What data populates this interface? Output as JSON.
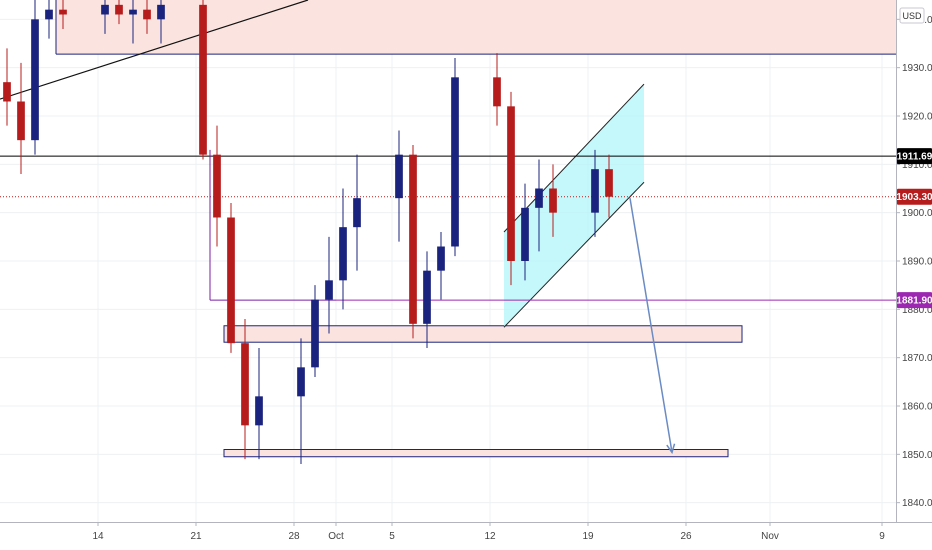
{
  "chart_data": {
    "type": "candlestick",
    "currency_label": "USD",
    "y_axis": {
      "min": 1836,
      "max": 1944,
      "ticks": [
        1840,
        1850,
        1860,
        1870,
        1880,
        1890,
        1900,
        1910,
        1920,
        1930,
        1940
      ]
    },
    "x_axis": {
      "start": "2020-09-07",
      "end": "2020-11-10",
      "ticks": [
        {
          "label": "14",
          "date": "2020-09-14"
        },
        {
          "label": "21",
          "date": "2020-09-21"
        },
        {
          "label": "28",
          "date": "2020-09-28"
        },
        {
          "label": "Oct",
          "date": "2020-10-01"
        },
        {
          "label": "5",
          "date": "2020-10-05"
        },
        {
          "label": "12",
          "date": "2020-10-12"
        },
        {
          "label": "19",
          "date": "2020-10-19"
        },
        {
          "label": "26",
          "date": "2020-10-26"
        },
        {
          "label": "Nov",
          "date": "2020-11-01"
        },
        {
          "label": "9",
          "date": "2020-11-09"
        }
      ]
    },
    "price_badges": [
      {
        "label": "1911.69",
        "value": 1911.69,
        "color": "#000000"
      },
      {
        "label": "1903.30",
        "value": 1903.3,
        "color": "#b71c1c"
      },
      {
        "label": "1881.90",
        "value": 1881.9,
        "color": "#9c27b0"
      }
    ],
    "horizontal_lines": [
      {
        "value": 1911.69,
        "color": "#000000",
        "style": "solid"
      },
      {
        "value": 1903.3,
        "color": "#b71c1c",
        "style": "dotted"
      },
      {
        "value": 1932.8,
        "color": "#1a237e",
        "style": "solid",
        "from": "2020-09-11",
        "to": "2020-11-10"
      },
      {
        "value": 1881.9,
        "color": "#9c27b0",
        "style": "solid",
        "from": "2020-10-01",
        "to": "2020-11-10"
      },
      {
        "value": 1881.9,
        "color": "#7b1fa2",
        "style": "solid",
        "from": "2020-09-22",
        "to": "2020-10-01"
      }
    ],
    "zones": [
      {
        "from": "2020-09-11",
        "to": "2020-11-10",
        "low": 1932.8,
        "high": 1944,
        "fill": "#fbe4df"
      },
      {
        "from": "2020-09-23",
        "to": "2020-10-30",
        "low": 1873.2,
        "high": 1876.6,
        "fill": "#fbe4df",
        "border": "#1a237e"
      },
      {
        "from": "2020-09-23",
        "to": "2020-10-29",
        "low": 1849.5,
        "high": 1851.0,
        "fill": "#fbe4df",
        "border": "#1a237e"
      }
    ],
    "channel": {
      "lower": [
        {
          "date": "2020-10-13",
          "value": 1876.3
        },
        {
          "date": "2020-10-23",
          "value": 1906.3
        }
      ],
      "upper": [
        {
          "date": "2020-10-13",
          "value": 1896.0
        },
        {
          "date": "2020-10-23",
          "value": 1926.6
        }
      ],
      "fill": "#b2f5fa"
    },
    "trendline": [
      {
        "date": "2020-09-07",
        "value": 1923.5
      },
      {
        "date": "2020-09-29",
        "value": 1944
      }
    ],
    "projection_arrow": [
      {
        "date": "2020-10-22",
        "value": 1903
      },
      {
        "date": "2020-10-25",
        "value": 1850.4
      }
    ],
    "candles": [
      {
        "date": "2020-09-07",
        "open": 1927.0,
        "high": 1934.0,
        "low": 1918.0,
        "close": 1923.0
      },
      {
        "date": "2020-09-08",
        "open": 1923.0,
        "high": 1931.0,
        "low": 1908.0,
        "close": 1915.0
      },
      {
        "date": "2020-09-09",
        "open": 1915.0,
        "high": 1946.0,
        "low": 1912.0,
        "close": 1940.0
      },
      {
        "date": "2020-09-10",
        "open": 1940.0,
        "high": 1946.0,
        "low": 1936.0,
        "close": 1942.0
      },
      {
        "date": "2020-09-11",
        "open": 1942.0,
        "high": 1946.0,
        "low": 1938.0,
        "close": 1941.0
      },
      {
        "date": "2020-09-14",
        "open": 1941.0,
        "high": 1946.0,
        "low": 1937.0,
        "close": 1943.0
      },
      {
        "date": "2020-09-15",
        "open": 1943.0,
        "high": 1946.0,
        "low": 1939.0,
        "close": 1941.0
      },
      {
        "date": "2020-09-16",
        "open": 1941.0,
        "high": 1946.0,
        "low": 1935.0,
        "close": 1942.0
      },
      {
        "date": "2020-09-17",
        "open": 1942.0,
        "high": 1946.0,
        "low": 1937.0,
        "close": 1940.0
      },
      {
        "date": "2020-09-18",
        "open": 1940.0,
        "high": 1946.0,
        "low": 1935.0,
        "close": 1943.0
      },
      {
        "date": "2020-09-21",
        "open": 1943.0,
        "high": 1944.0,
        "low": 1911.0,
        "close": 1912.0
      },
      {
        "date": "2020-09-22",
        "open": 1912.0,
        "high": 1918.0,
        "low": 1893.0,
        "close": 1899.0
      },
      {
        "date": "2020-09-23",
        "open": 1899.0,
        "high": 1902.0,
        "low": 1871.0,
        "close": 1873.0
      },
      {
        "date": "2020-09-24",
        "open": 1873.0,
        "high": 1878.0,
        "low": 1849.0,
        "close": 1856.0
      },
      {
        "date": "2020-09-25",
        "open": 1856.0,
        "high": 1872.0,
        "low": 1849.0,
        "close": 1862.0
      },
      {
        "date": "2020-09-28",
        "open": 1862.0,
        "high": 1874.0,
        "low": 1848.0,
        "close": 1868.0
      },
      {
        "date": "2020-09-29",
        "open": 1868.0,
        "high": 1885.0,
        "low": 1866.0,
        "close": 1882.0
      },
      {
        "date": "2020-09-30",
        "open": 1882.0,
        "high": 1895.0,
        "low": 1875.0,
        "close": 1886.0
      },
      {
        "date": "2020-10-01",
        "open": 1886.0,
        "high": 1905.0,
        "low": 1880.0,
        "close": 1897.0
      },
      {
        "date": "2020-10-02",
        "open": 1897.0,
        "high": 1912.0,
        "low": 1888.0,
        "close": 1903.0
      },
      {
        "date": "2020-10-05",
        "open": 1903.0,
        "high": 1917.0,
        "low": 1894.0,
        "close": 1912.0
      },
      {
        "date": "2020-10-06",
        "open": 1912.0,
        "high": 1914.0,
        "low": 1874.0,
        "close": 1877.0
      },
      {
        "date": "2020-10-07",
        "open": 1877.0,
        "high": 1892.0,
        "low": 1872.0,
        "close": 1888.0
      },
      {
        "date": "2020-10-08",
        "open": 1888.0,
        "high": 1896.0,
        "low": 1882.0,
        "close": 1893.0
      },
      {
        "date": "2020-10-09",
        "open": 1893.0,
        "high": 1932.0,
        "low": 1891.0,
        "close": 1928.0
      },
      {
        "date": "2020-10-12",
        "open": 1928.0,
        "high": 1933.0,
        "low": 1918.0,
        "close": 1922.0
      },
      {
        "date": "2020-10-13",
        "open": 1922.0,
        "high": 1925.0,
        "low": 1885.0,
        "close": 1890.0
      },
      {
        "date": "2020-10-14",
        "open": 1890.0,
        "high": 1906.0,
        "low": 1886.0,
        "close": 1901.0
      },
      {
        "date": "2020-10-15",
        "open": 1901.0,
        "high": 1911.0,
        "low": 1892.0,
        "close": 1905.0
      },
      {
        "date": "2020-10-16",
        "open": 1905.0,
        "high": 1910.0,
        "low": 1895.0,
        "close": 1900.0
      },
      {
        "date": "2020-10-19",
        "open": 1900.0,
        "high": 1913.0,
        "low": 1895.0,
        "close": 1909.0
      },
      {
        "date": "2020-10-20",
        "open": 1909.0,
        "high": 1912.0,
        "low": 1899.0,
        "close": 1903.3
      }
    ]
  }
}
